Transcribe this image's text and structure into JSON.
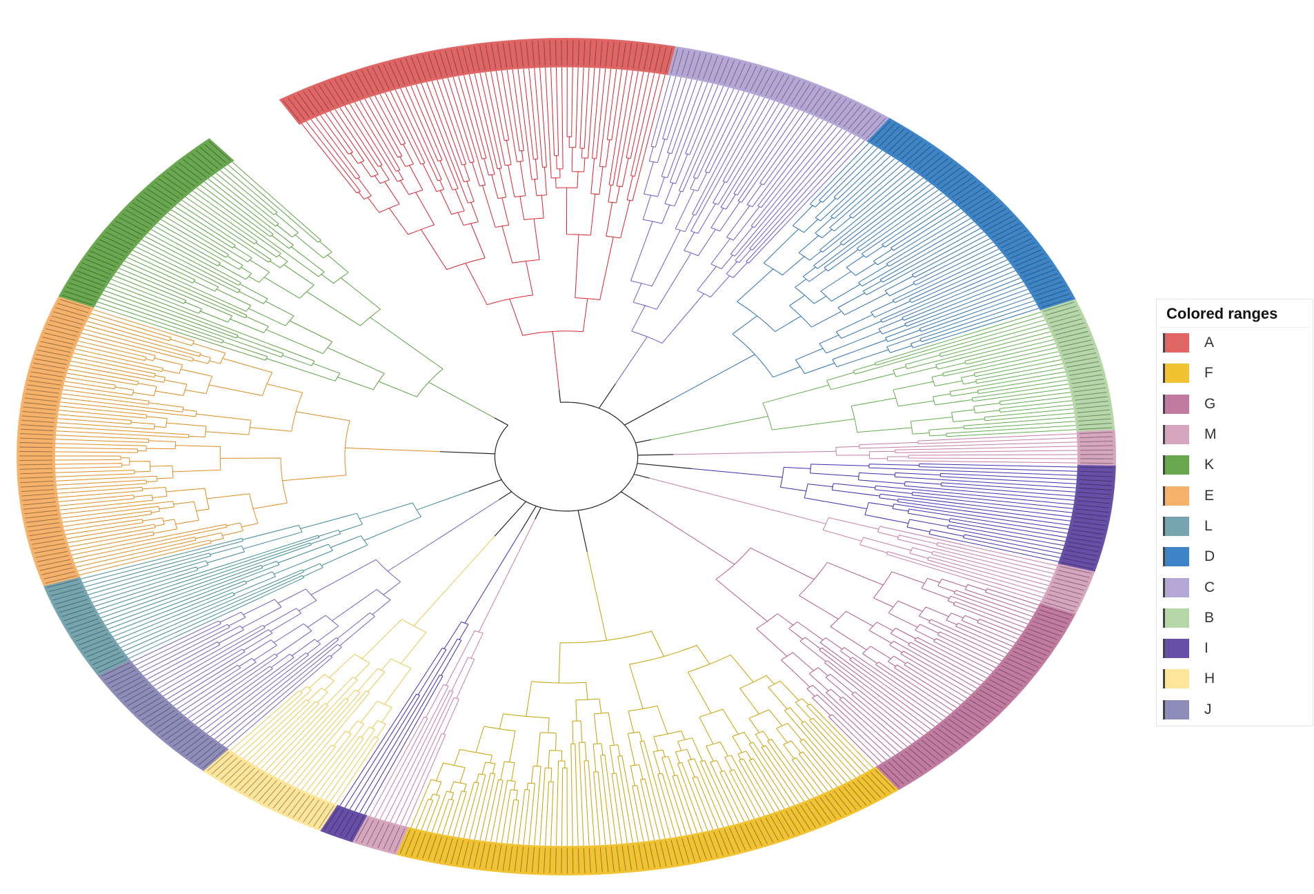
{
  "legend": {
    "title": "Colored ranges",
    "items": [
      {
        "label": "A",
        "color": "#e06666"
      },
      {
        "label": "F",
        "color": "#f1c232"
      },
      {
        "label": "G",
        "color": "#c27ba0"
      },
      {
        "label": "M",
        "color": "#d5a6bd"
      },
      {
        "label": "K",
        "color": "#6aa84f"
      },
      {
        "label": "E",
        "color": "#f6b26b"
      },
      {
        "label": "L",
        "color": "#76a5af"
      },
      {
        "label": "D",
        "color": "#3d85c6"
      },
      {
        "label": "C",
        "color": "#b4a7d6"
      },
      {
        "label": "B",
        "color": "#b6d7a8"
      },
      {
        "label": "I",
        "color": "#674ea7"
      },
      {
        "label": "H",
        "color": "#ffe599"
      },
      {
        "label": "J",
        "color": "#8e8cb8"
      }
    ]
  },
  "chart_data": {
    "type": "circular-phylogenetic-tree",
    "clades_clockwise_from_top": [
      {
        "group": "A",
        "leaves": 70,
        "branch_color": "#d9232e"
      },
      {
        "group": "C",
        "leaves": 40,
        "branch_color": "#6a5acd"
      },
      {
        "group": "D",
        "leaves": 52,
        "branch_color": "#2a6fb5"
      },
      {
        "group": "B",
        "leaves": 30,
        "branch_color": "#5fae4a"
      },
      {
        "group": "M",
        "leaves": 8,
        "branch_color": "#c77aa6"
      },
      {
        "group": "I",
        "leaves": 24,
        "branch_color": "#3b2db0"
      },
      {
        "group": "M",
        "leaves": 10,
        "branch_color": "#c77aa6"
      },
      {
        "group": "G",
        "leaves": 50,
        "branch_color": "#b05a8e"
      },
      {
        "group": "F",
        "leaves": 90,
        "branch_color": "#c9a000"
      },
      {
        "group": "M",
        "leaves": 8,
        "branch_color": "#c77aa6"
      },
      {
        "group": "I",
        "leaves": 6,
        "branch_color": "#3b2db0"
      },
      {
        "group": "H",
        "leaves": 24,
        "branch_color": "#e8c84a"
      },
      {
        "group": "J",
        "leaves": 28,
        "branch_color": "#6d5fc0"
      },
      {
        "group": "L",
        "leaves": 22,
        "branch_color": "#3d8a96"
      },
      {
        "group": "E",
        "leaves": 66,
        "branch_color": "#e08a1e"
      },
      {
        "group": "K",
        "leaves": 44,
        "branch_color": "#5aa040"
      }
    ]
  }
}
